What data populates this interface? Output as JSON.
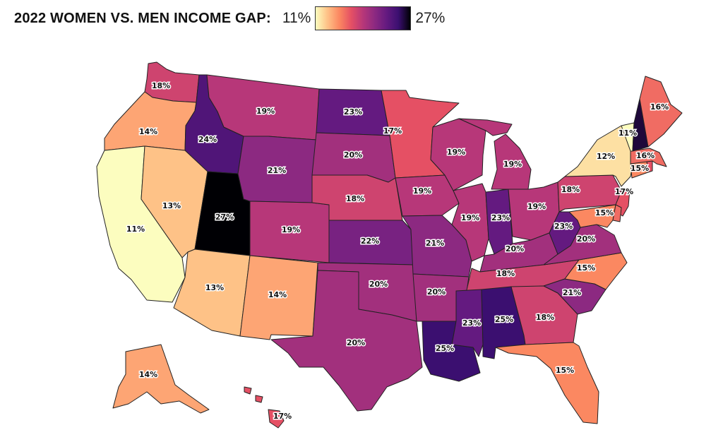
{
  "title": "2022 WOMEN VS. MEN INCOME GAP:",
  "legend": {
    "min_label": "11%",
    "max_label": "27%",
    "min": 11,
    "max": 27,
    "colors": [
      "#fcfdbf",
      "#fec287",
      "#fb8861",
      "#e55064",
      "#b73779",
      "#8c2981",
      "#641a80",
      "#3b0f70",
      "#000004"
    ]
  },
  "map_data": {
    "type": "choropleth",
    "unit": "%",
    "states": [
      {
        "id": "WA",
        "value": 18,
        "label": "18%"
      },
      {
        "id": "OR",
        "value": 14,
        "label": "14%"
      },
      {
        "id": "CA",
        "value": 11,
        "label": "11%"
      },
      {
        "id": "ID",
        "value": 24,
        "label": "24%"
      },
      {
        "id": "NV",
        "value": 13,
        "label": "13%"
      },
      {
        "id": "UT",
        "value": 27,
        "label": "27%"
      },
      {
        "id": "AZ",
        "value": 13,
        "label": "13%"
      },
      {
        "id": "MT",
        "value": 19,
        "label": "19%"
      },
      {
        "id": "WY",
        "value": 21,
        "label": "21%"
      },
      {
        "id": "CO",
        "value": 19,
        "label": "19%"
      },
      {
        "id": "NM",
        "value": 14,
        "label": "14%"
      },
      {
        "id": "ND",
        "value": 23,
        "label": "23%"
      },
      {
        "id": "SD",
        "value": 20,
        "label": "20%"
      },
      {
        "id": "NE",
        "value": 18,
        "label": "18%"
      },
      {
        "id": "KS",
        "value": 22,
        "label": "22%"
      },
      {
        "id": "OK",
        "value": 20,
        "label": "20%"
      },
      {
        "id": "TX",
        "value": 20,
        "label": "20%"
      },
      {
        "id": "MN",
        "value": 17,
        "label": "17%"
      },
      {
        "id": "IA",
        "value": 19,
        "label": "19%"
      },
      {
        "id": "MO",
        "value": 21,
        "label": "21%"
      },
      {
        "id": "AR",
        "value": 20,
        "label": "20%"
      },
      {
        "id": "LA",
        "value": 25,
        "label": "25%"
      },
      {
        "id": "WI",
        "value": 19,
        "label": "19%"
      },
      {
        "id": "IL",
        "value": 19,
        "label": "19%"
      },
      {
        "id": "MI",
        "value": 19,
        "label": "19%"
      },
      {
        "id": "IN",
        "value": 23,
        "label": "23%"
      },
      {
        "id": "OH",
        "value": 19,
        "label": "19%"
      },
      {
        "id": "KY",
        "value": 20,
        "label": "20%"
      },
      {
        "id": "TN",
        "value": 18,
        "label": "18%"
      },
      {
        "id": "MS",
        "value": 23,
        "label": "23%"
      },
      {
        "id": "AL",
        "value": 25,
        "label": "25%"
      },
      {
        "id": "GA",
        "value": 18,
        "label": "18%"
      },
      {
        "id": "FL",
        "value": 15,
        "label": "15%"
      },
      {
        "id": "SC",
        "value": 21,
        "label": "21%"
      },
      {
        "id": "NC",
        "value": 15,
        "label": "15%"
      },
      {
        "id": "VA",
        "value": 20,
        "label": "20%"
      },
      {
        "id": "WV",
        "value": 23,
        "label": "23%"
      },
      {
        "id": "PA",
        "value": 18,
        "label": "18%"
      },
      {
        "id": "NY",
        "value": 12,
        "label": "12%"
      },
      {
        "id": "NJ",
        "value": 17,
        "label": "17%"
      },
      {
        "id": "MD",
        "value": 15,
        "label": "15%"
      },
      {
        "id": "DE",
        "value": 16,
        "label": ""
      },
      {
        "id": "CT",
        "value": 15,
        "label": "15%"
      },
      {
        "id": "RI",
        "value": 17,
        "label": ""
      },
      {
        "id": "MA",
        "value": 16,
        "label": "16%"
      },
      {
        "id": "VT",
        "value": 11,
        "label": "11%"
      },
      {
        "id": "NH",
        "value": 26,
        "label": ""
      },
      {
        "id": "ME",
        "value": 16,
        "label": "16%"
      },
      {
        "id": "AK",
        "value": 14,
        "label": "14%"
      },
      {
        "id": "HI",
        "value": 17,
        "label": "17%"
      }
    ]
  }
}
